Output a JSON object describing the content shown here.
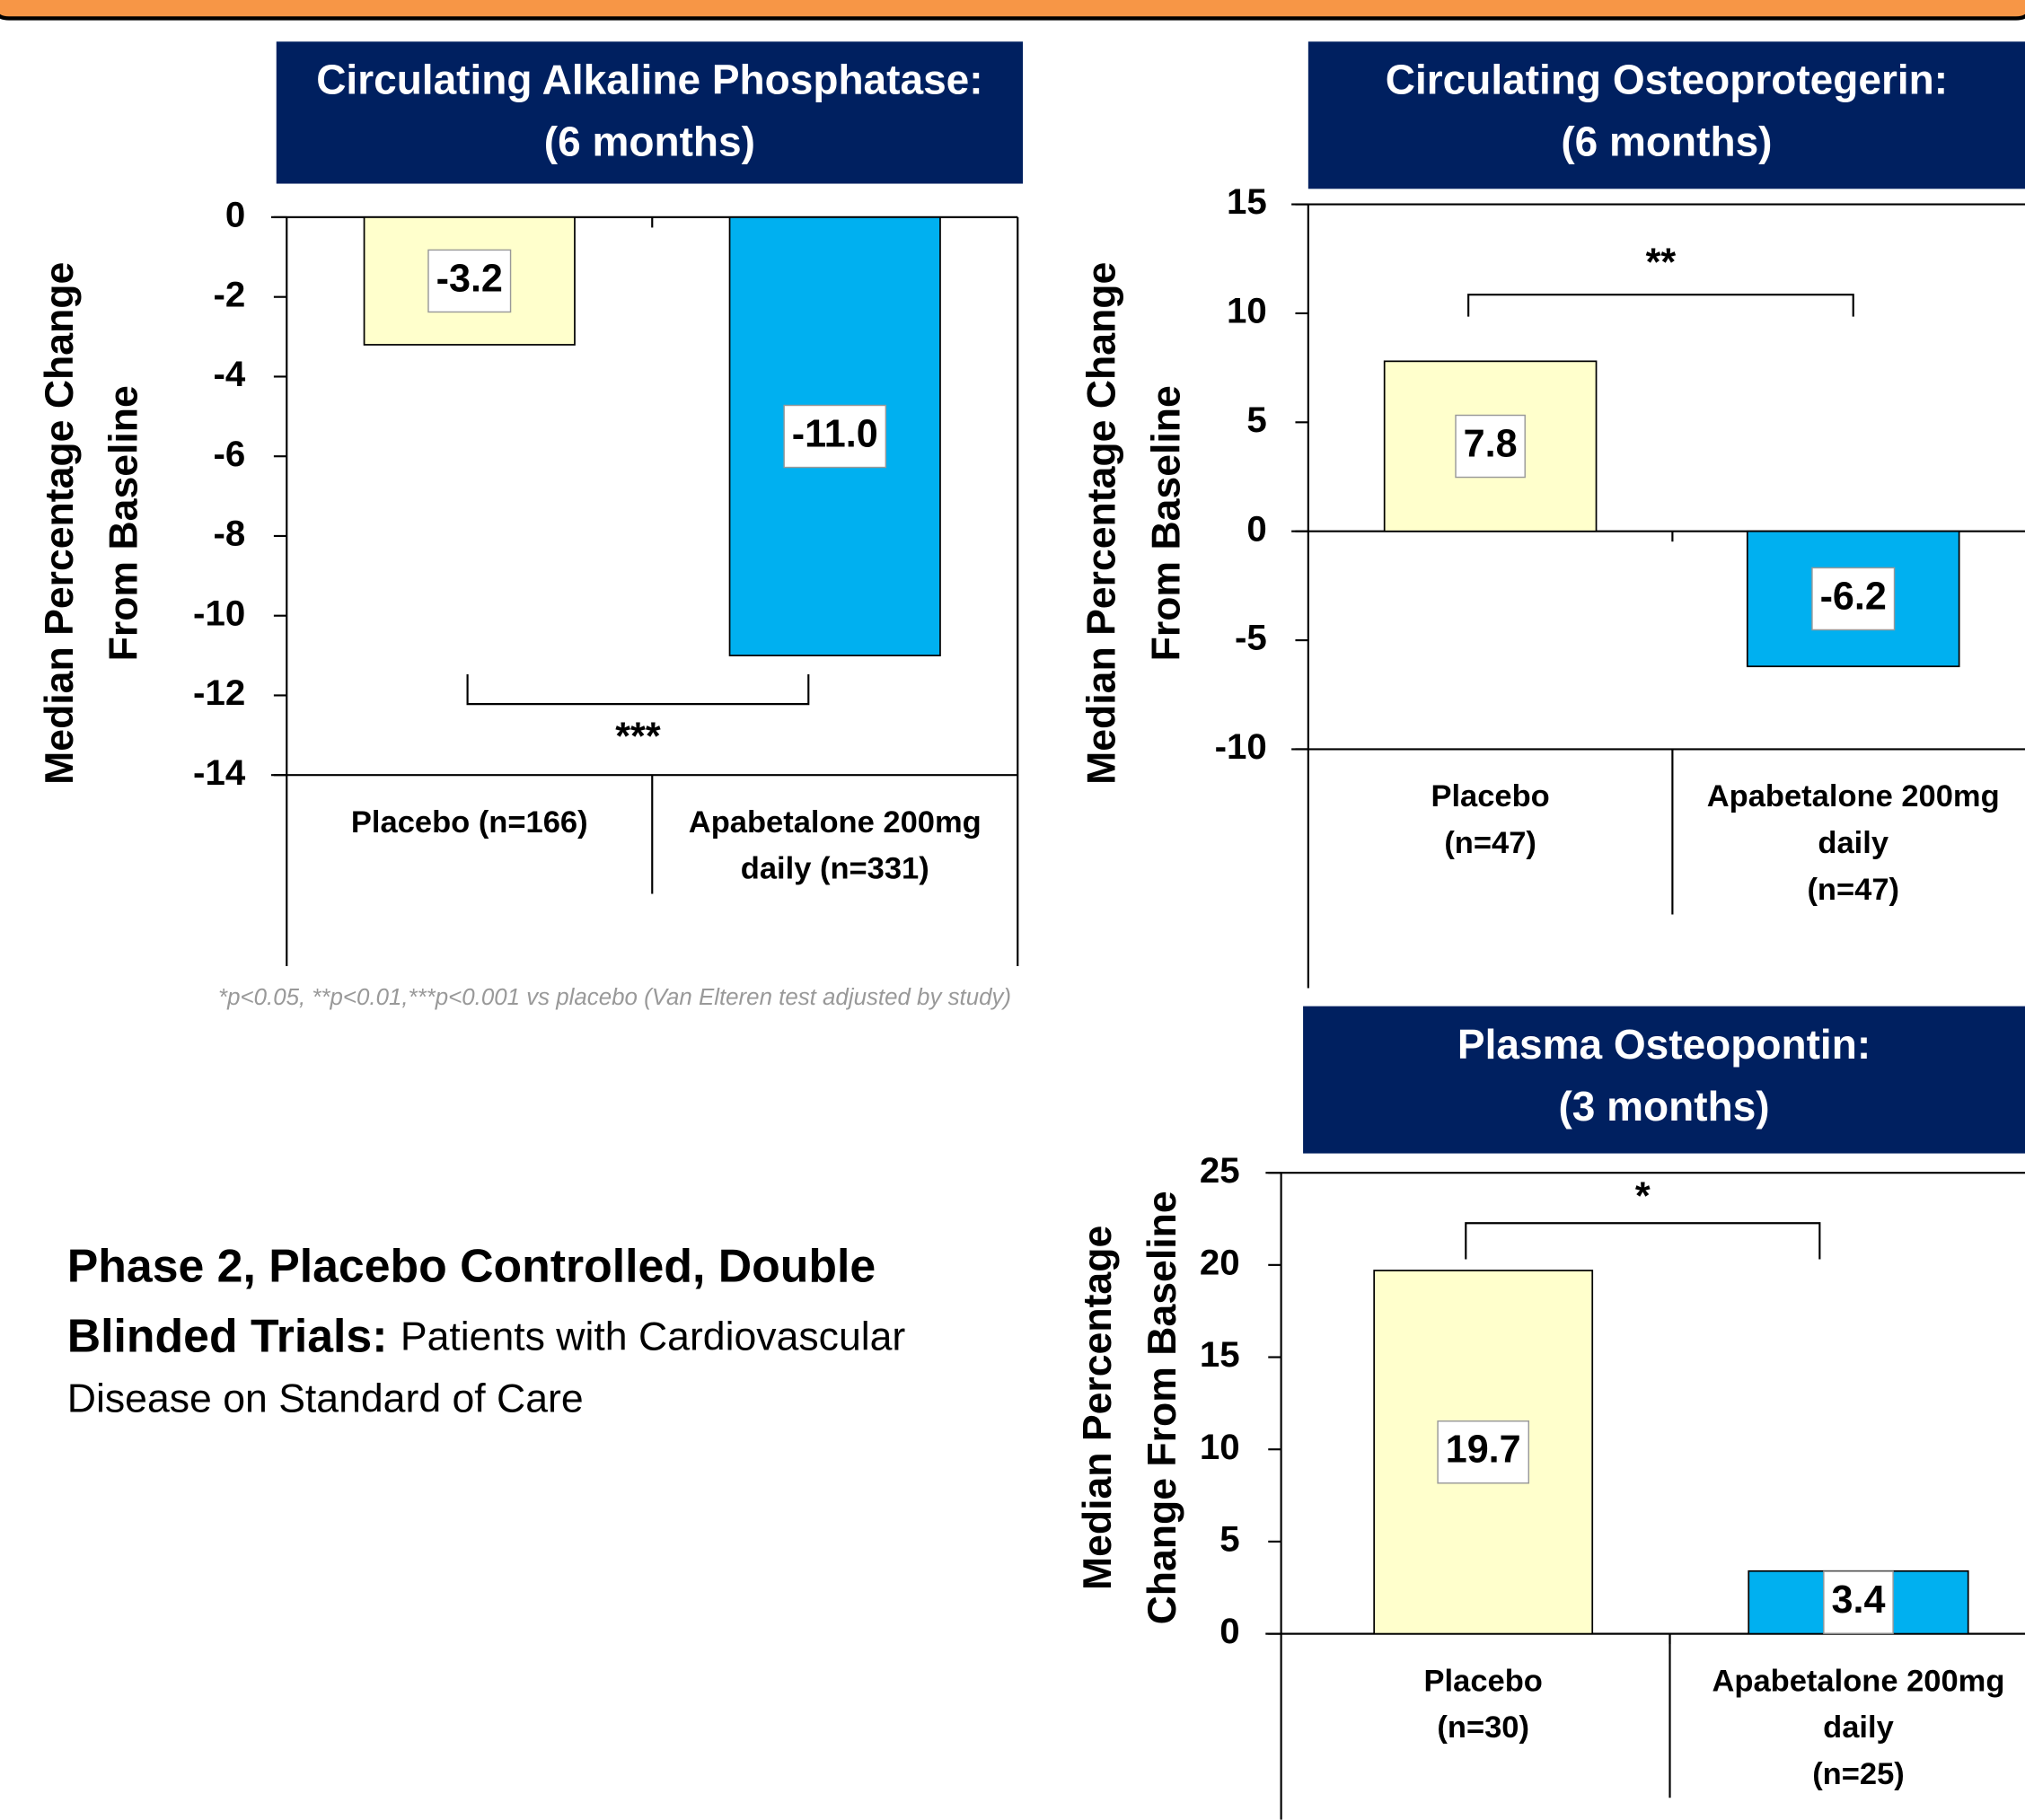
{
  "chart_data": [
    {
      "type": "bar",
      "title": "Circulating Alkaline Phosphatase:",
      "subtitle": "(6 months)",
      "ylabel": [
        "Median Percentage Change",
        "From Baseline"
      ],
      "categories": [
        [
          "Placebo (n=166)"
        ],
        [
          "Apabetalone 200mg",
          "daily (n=331)"
        ]
      ],
      "values": [
        -3.2,
        -11.0
      ],
      "value_labels": [
        "-3.2",
        "-11.0"
      ],
      "colors": [
        "#ffffcc",
        "#00b0f0"
      ],
      "ylim": [
        -14,
        0
      ],
      "yticks": [
        0,
        -2,
        -4,
        -6,
        -8,
        -10,
        -12,
        -14
      ],
      "significance": "***",
      "footnote": "*p<0.05, **p<0.01,***p<0.001 vs placebo (Van Elteren test adjusted by study)"
    },
    {
      "type": "bar",
      "title": "Circulating Osteoprotegerin:",
      "subtitle": "(6 months)",
      "ylabel": [
        "Median Percentage Change",
        "From Baseline"
      ],
      "categories": [
        [
          "Placebo",
          "(n=47)"
        ],
        [
          "Apabetalone 200mg",
          "daily",
          "(n=47)"
        ]
      ],
      "values": [
        7.8,
        -6.2
      ],
      "value_labels": [
        "7.8",
        "-6.2"
      ],
      "colors": [
        "#ffffcc",
        "#00b0f0"
      ],
      "ylim": [
        -10,
        15
      ],
      "yticks": [
        15,
        10,
        5,
        0,
        -5,
        -10
      ],
      "significance": "**"
    },
    {
      "type": "bar",
      "title": "Plasma Osteopontin:",
      "subtitle": "(3 months)",
      "ylabel": [
        "Median Percentage",
        "Change From Baseline"
      ],
      "categories": [
        [
          "Placebo",
          "(n=30)"
        ],
        [
          "Apabetalone 200mg",
          "daily",
          "(n=25)"
        ]
      ],
      "values": [
        19.7,
        3.4
      ],
      "value_labels": [
        "19.7",
        "3.4"
      ],
      "colors": [
        "#ffffcc",
        "#00b0f0"
      ],
      "ylim": [
        0,
        25
      ],
      "yticks": [
        25,
        20,
        15,
        10,
        5,
        0
      ],
      "significance": "*"
    }
  ],
  "caption": {
    "bold": [
      "Phase 2, Placebo Controlled, Double",
      "Blinded Trials:"
    ],
    "normal": [
      "Patients with Cardiovascular",
      "Disease on Standard of Care"
    ]
  }
}
